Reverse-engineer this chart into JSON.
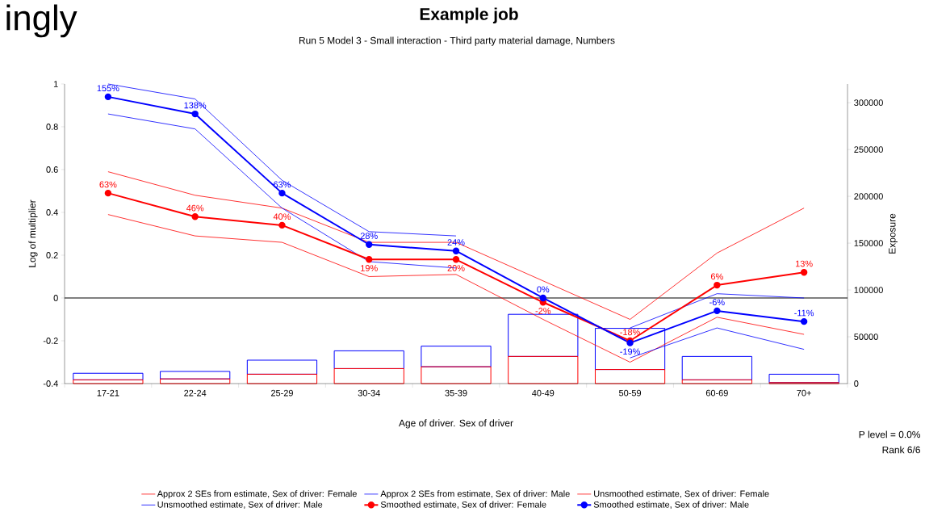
{
  "chart_data": {
    "type": "line",
    "title": "Example job",
    "subtitle": "Run 5 Model 3 - Small interaction - Third party material damage, Numbers",
    "xlabel": "Age of driver. Sex of driver",
    "ylabel": "Log of multiplier",
    "y2label": "Exposure",
    "annotations": [
      "ingly",
      "P level = 0.0%",
      "Rank 6/6",
      {
        "text": "63%",
        "x": "17-21",
        "y": 0.49
      },
      {
        "text": "46%",
        "x": "22-24",
        "y": 0.38
      },
      {
        "text": "40%",
        "x": "25-29",
        "y": 0.34
      },
      {
        "text": "19%",
        "x": "30-34",
        "y": 0.18
      },
      {
        "text": "20%",
        "x": "35-39",
        "y": 0.18
      },
      {
        "text": "-2%",
        "x": "40-49",
        "y": -0.02
      },
      {
        "text": "-18%",
        "x": "50-59",
        "y": -0.2
      },
      {
        "text": "6%",
        "x": "60-69",
        "y": 0.06
      },
      {
        "text": "13%",
        "x": "70+",
        "y": 0.12
      },
      {
        "text": "155%",
        "x": "17-21",
        "y": 0.94
      },
      {
        "text": "138%",
        "x": "22-24",
        "y": 0.86
      },
      {
        "text": "63%",
        "x": "25-29",
        "y": 0.49
      },
      {
        "text": "28%",
        "x": "30-34",
        "y": 0.25
      },
      {
        "text": "24%",
        "x": "35-39",
        "y": 0.22
      },
      {
        "text": "0%",
        "x": "40-49",
        "y": 0.0
      },
      {
        "text": "-19%",
        "x": "50-59",
        "y": -0.21
      },
      {
        "text": "-6%",
        "x": "60-69",
        "y": -0.06
      },
      {
        "text": "-11%",
        "x": "70+",
        "y": -0.11
      }
    ],
    "categories": [
      "17-21",
      "22-24",
      "25-29",
      "30-34",
      "35-39",
      "40-49",
      "50-59",
      "60-69",
      "70+"
    ],
    "ylim": [
      -0.4,
      1
    ],
    "yticks": [
      -0.4,
      -0.2,
      0,
      0.2,
      0.4,
      0.6,
      0.8,
      1
    ],
    "y2lim": [
      0,
      320000
    ],
    "y2ticks": [
      0,
      50000,
      100000,
      150000,
      200000,
      250000,
      300000
    ],
    "legend": "bottom",
    "ref_lines": [
      {
        "axis": "y",
        "value": 0,
        "color": "#000000"
      }
    ],
    "series": [
      {
        "type": "bar",
        "axis": "y2",
        "color": "#ff0000",
        "values": [
          4000,
          5000,
          10000,
          16000,
          18000,
          29000,
          15000,
          4000,
          1000
        ]
      },
      {
        "type": "bar",
        "axis": "y2",
        "color": "#0000ff",
        "base": [
          4000,
          5000,
          10000,
          16000,
          18000,
          29000,
          15000,
          4000,
          1000
        ],
        "values": [
          7000,
          8000,
          15000,
          19000,
          22000,
          45000,
          44000,
          25000,
          9000
        ]
      },
      {
        "name": "Approx 2 SEs from estimate, Sex of driver: Female",
        "color": "#ff0000",
        "marker": "none",
        "values": [
          0.59,
          0.48,
          0.42,
          0.26,
          0.26,
          0.08,
          -0.1,
          0.21,
          0.42
        ]
      },
      {
        "color": "#ff0000",
        "marker": "none",
        "values": [
          0.39,
          0.29,
          0.26,
          0.1,
          0.11,
          -0.1,
          -0.3,
          -0.09,
          -0.17
        ]
      },
      {
        "name": "Approx 2 SEs from estimate, Sex of driver: Male",
        "color": "#0000ff",
        "marker": "none",
        "values": [
          1.0,
          0.93,
          0.55,
          0.31,
          0.29,
          null,
          -0.14,
          0.02,
          0.0
        ]
      },
      {
        "color": "#0000ff",
        "marker": "none",
        "values": [
          0.86,
          0.79,
          0.42,
          0.17,
          0.14,
          null,
          -0.28,
          -0.14,
          -0.24
        ]
      },
      {
        "name": "Unsmoothed estimate, Sex of driver: Female",
        "color": "#ff0000",
        "marker": "none",
        "values": [
          null,
          null,
          null,
          null,
          null,
          null,
          null,
          null,
          null
        ]
      },
      {
        "name": "Unsmoothed estimate, Sex of driver: Male",
        "color": "#0000ff",
        "marker": "none",
        "values": [
          null,
          null,
          null,
          null,
          null,
          null,
          null,
          null,
          null
        ]
      },
      {
        "name": "Smoothed estimate, Sex of driver: Female",
        "color": "#ff0000",
        "marker": "circle",
        "values": [
          0.49,
          0.38,
          0.34,
          0.18,
          0.18,
          -0.02,
          -0.2,
          0.06,
          0.12
        ]
      },
      {
        "name": "Smoothed estimate, Sex of driver: Male",
        "color": "#0000ff",
        "marker": "circle",
        "values": [
          0.94,
          0.86,
          0.49,
          0.25,
          0.22,
          0.0,
          -0.21,
          -0.06,
          -0.11
        ]
      }
    ]
  }
}
